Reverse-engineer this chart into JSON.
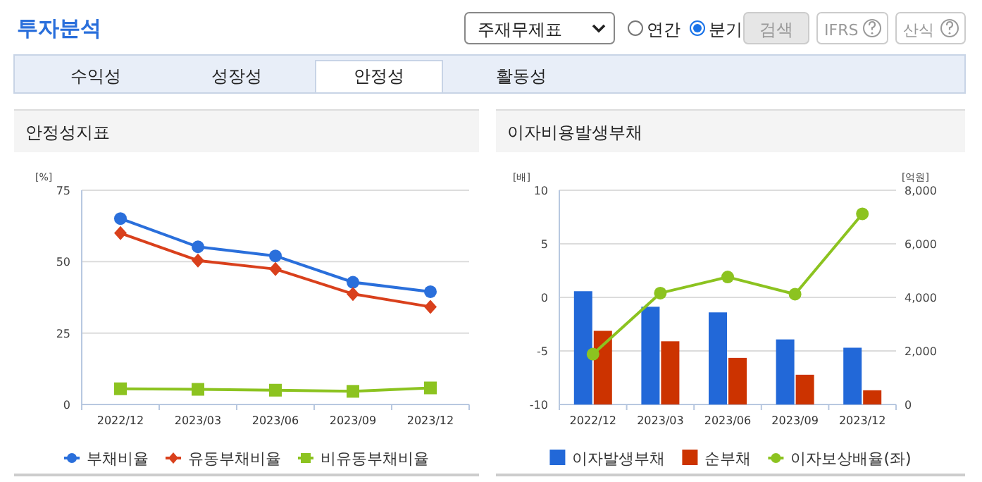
{
  "chart_data": [
    {
      "type": "other",
      "title": "투자분석",
      "annotations": [
        "주재무제표",
        "연간",
        "분기",
        "검색",
        "IFRS",
        "산식",
        "수익성",
        "성장성",
        "안정성",
        "활동성"
      ]
    },
    {
      "type": "line",
      "title": "안정성지표",
      "ylabel": "[%]",
      "categories": [
        "2022/12",
        "2023/03",
        "2023/06",
        "2023/09",
        "2023/12"
      ],
      "ylim": [
        0,
        75
      ],
      "yticks": [
        0,
        25,
        50,
        75
      ],
      "grid": "y",
      "legend": "bottom",
      "series": [
        {
          "name": "부채비율",
          "color": "#2a6fdb",
          "marker": "circle",
          "values": [
            65.1,
            55.2,
            52.0,
            42.8,
            39.5
          ]
        },
        {
          "name": "유동부채비율",
          "color": "#d9401c",
          "marker": "diamond",
          "values": [
            60.0,
            50.4,
            47.4,
            38.7,
            34.2
          ]
        },
        {
          "name": "비유동부채비율",
          "color": "#8cc320",
          "marker": "square",
          "values": [
            5.5,
            5.3,
            5.0,
            4.6,
            5.8
          ]
        }
      ]
    },
    {
      "type": "bar",
      "title": "이자비용발생부채",
      "ylabel": "[배]",
      "y2label": "[억원]",
      "categories": [
        "2022/12",
        "2023/03",
        "2023/06",
        "2023/09",
        "2023/12"
      ],
      "ylim": [
        -10,
        10
      ],
      "yticks": [
        -10,
        -5,
        0,
        5,
        10
      ],
      "y2lim": [
        0,
        8000
      ],
      "y2ticks": [
        0,
        {
          "value": 2000,
          "label": "2,000"
        },
        {
          "value": 4000,
          "label": "4,000"
        },
        {
          "value": 6000,
          "label": "6,000"
        },
        {
          "value": 8000,
          "label": "8,000"
        }
      ],
      "grid": "y",
      "legend": "bottom",
      "series": [
        {
          "name": "이자발생부채",
          "color": "#2268d8",
          "axis": "y2",
          "values": [
            4230,
            3650,
            3440,
            2430,
            2120
          ]
        },
        {
          "name": "순부채",
          "color": "#cc3300",
          "axis": "y2",
          "values": [
            2750,
            2360,
            1740,
            1110,
            530
          ]
        },
        {
          "name": "이자보상배율(좌)",
          "type": "line",
          "color": "#8cc320",
          "marker": "circle",
          "values": [
            -5.3,
            0.4,
            1.9,
            0.3,
            7.8
          ]
        }
      ]
    }
  ]
}
